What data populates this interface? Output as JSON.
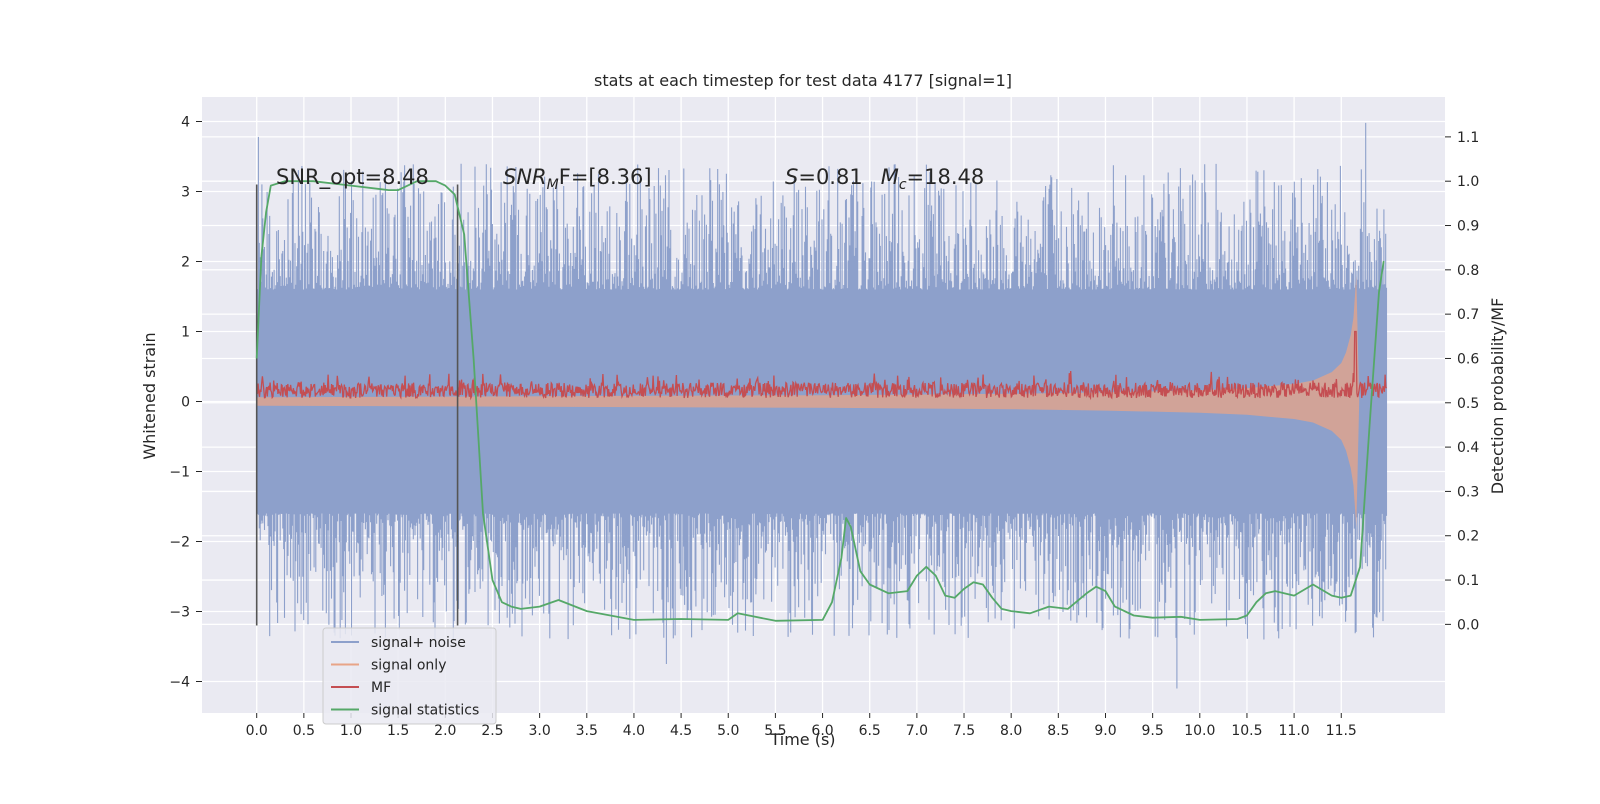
{
  "chart_data": {
    "type": "line",
    "title": "stats at each timestep for test data 4177 [signal=1]",
    "xlabel": "Time (s)",
    "ylabel": "Whitened strain",
    "ylabel_right": "Detection probability/MF",
    "xlim": [
      -0.58,
      12.6
    ],
    "ylim": [
      -4.45,
      4.35
    ],
    "ylim_right": [
      -0.2,
      1.19
    ],
    "x_ticks": [
      0.0,
      0.5,
      1.0,
      1.5,
      2.0,
      2.5,
      3.0,
      3.5,
      4.0,
      4.5,
      5.0,
      5.5,
      6.0,
      6.5,
      7.0,
      7.5,
      8.0,
      8.5,
      9.0,
      9.5,
      10.0,
      10.5,
      11.0,
      11.5
    ],
    "x_tick_labels": [
      "0.0",
      "0.5",
      "1.0",
      "1.5",
      "2.0",
      "2.5",
      "3.0",
      "3.5",
      "4.0",
      "4.5",
      "5.0",
      "5.5",
      "6.0",
      "6.5",
      "7.0",
      "7.5",
      "8.0",
      "8.5",
      "9.0",
      "9.5",
      "10.0",
      "10.5",
      "11.0",
      "11.5"
    ],
    "y_ticks": [
      -4,
      -3,
      -2,
      -1,
      0,
      1,
      2,
      3,
      4
    ],
    "y_tick_labels": [
      "−4",
      "−3",
      "−2",
      "−1",
      "0",
      "1",
      "2",
      "3",
      "4"
    ],
    "y_ticks_right": [
      0.0,
      0.1,
      0.2,
      0.3,
      0.4,
      0.5,
      0.6,
      0.7,
      0.8,
      0.9,
      1.0,
      1.1
    ],
    "y_tick_labels_right": [
      "0.0",
      "0.1",
      "0.2",
      "0.3",
      "0.4",
      "0.5",
      "0.6",
      "0.7",
      "0.8",
      "0.9",
      "1.0",
      "1.1"
    ],
    "grid": true,
    "legend_position": "lower-left",
    "annotations": {
      "snr_opt": "SNR_opt=8.48",
      "snr_mf_main": "SNR",
      "snr_mf_sub": "M",
      "snr_mf_rest": "F=[8.36]",
      "s_symbol": "S",
      "s_value": "=0.81",
      "mc_symbol": "M",
      "mc_sub": "c",
      "mc_value": "=18.48"
    },
    "vertical_markers": [
      {
        "x": 0.0,
        "y": [
          -3.2,
          3.1
        ]
      },
      {
        "x": 2.13,
        "y": [
          -3.2,
          3.1
        ]
      }
    ],
    "noise_band": {
      "x_range": [
        0.0,
        11.98
      ],
      "dense_upper": 1.2,
      "dense_lower": -1.35,
      "peak_upper_typical": [
        1.6,
        3.0
      ],
      "peak_lower_typical": [
        -1.6,
        -3.0
      ],
      "max_value": 3.98,
      "min_value": -4.1
    },
    "series": [
      {
        "name": "signal+ noise",
        "color": "#8da0cb",
        "axis": "left",
        "description_values": {
          "x_range": [
            0.0,
            11.98
          ],
          "y_range": [
            -4.1,
            3.98
          ]
        }
      },
      {
        "name": "signal only",
        "color": "#e8a487",
        "axis": "left",
        "envelope_x": [
          0.0,
          2.0,
          4.0,
          6.0,
          8.0,
          9.0,
          10.0,
          10.5,
          11.0,
          11.2,
          11.4,
          11.5,
          11.55,
          11.6,
          11.63,
          11.66,
          11.69
        ],
        "envelope_y": [
          0.06,
          0.07,
          0.08,
          0.09,
          0.11,
          0.13,
          0.16,
          0.19,
          0.25,
          0.3,
          0.42,
          0.55,
          0.7,
          0.95,
          1.2,
          1.8,
          0.0
        ]
      },
      {
        "name": "MF",
        "color": "#c44e52",
        "axis": "left",
        "band_x_range": [
          0.0,
          11.98
        ],
        "band_y_range": [
          0.0,
          0.45
        ],
        "peak": {
          "x": 11.65,
          "y": 1.0
        }
      },
      {
        "name": "signal statistics",
        "color": "#55a868",
        "axis": "right",
        "x": [
          0.0,
          0.05,
          0.1,
          0.15,
          0.3,
          0.6,
          1.0,
          1.4,
          1.5,
          1.7,
          1.9,
          2.0,
          2.1,
          2.2,
          2.3,
          2.4,
          2.5,
          2.6,
          2.7,
          2.8,
          3.0,
          3.2,
          3.5,
          4.0,
          4.5,
          5.0,
          5.1,
          5.5,
          6.0,
          6.1,
          6.2,
          6.25,
          6.3,
          6.4,
          6.5,
          6.7,
          6.9,
          7.0,
          7.1,
          7.2,
          7.3,
          7.4,
          7.5,
          7.6,
          7.7,
          7.8,
          7.9,
          8.0,
          8.2,
          8.4,
          8.6,
          8.8,
          8.9,
          9.0,
          9.1,
          9.3,
          9.5,
          9.8,
          10.0,
          10.4,
          10.5,
          10.6,
          10.7,
          10.8,
          11.0,
          11.2,
          11.4,
          11.5,
          11.6,
          11.7,
          11.8,
          11.9,
          11.95
        ],
        "y": [
          0.6,
          0.83,
          0.93,
          0.99,
          1.0,
          1.0,
          0.99,
          0.98,
          0.98,
          1.0,
          1.0,
          0.99,
          0.97,
          0.88,
          0.6,
          0.25,
          0.1,
          0.05,
          0.04,
          0.035,
          0.04,
          0.055,
          0.03,
          0.01,
          0.012,
          0.01,
          0.025,
          0.008,
          0.01,
          0.05,
          0.15,
          0.24,
          0.22,
          0.12,
          0.09,
          0.07,
          0.075,
          0.11,
          0.13,
          0.11,
          0.065,
          0.06,
          0.08,
          0.095,
          0.09,
          0.06,
          0.035,
          0.03,
          0.025,
          0.04,
          0.035,
          0.07,
          0.085,
          0.075,
          0.04,
          0.02,
          0.015,
          0.017,
          0.01,
          0.012,
          0.02,
          0.05,
          0.07,
          0.075,
          0.065,
          0.09,
          0.065,
          0.06,
          0.065,
          0.13,
          0.45,
          0.75,
          0.82
        ]
      }
    ]
  }
}
